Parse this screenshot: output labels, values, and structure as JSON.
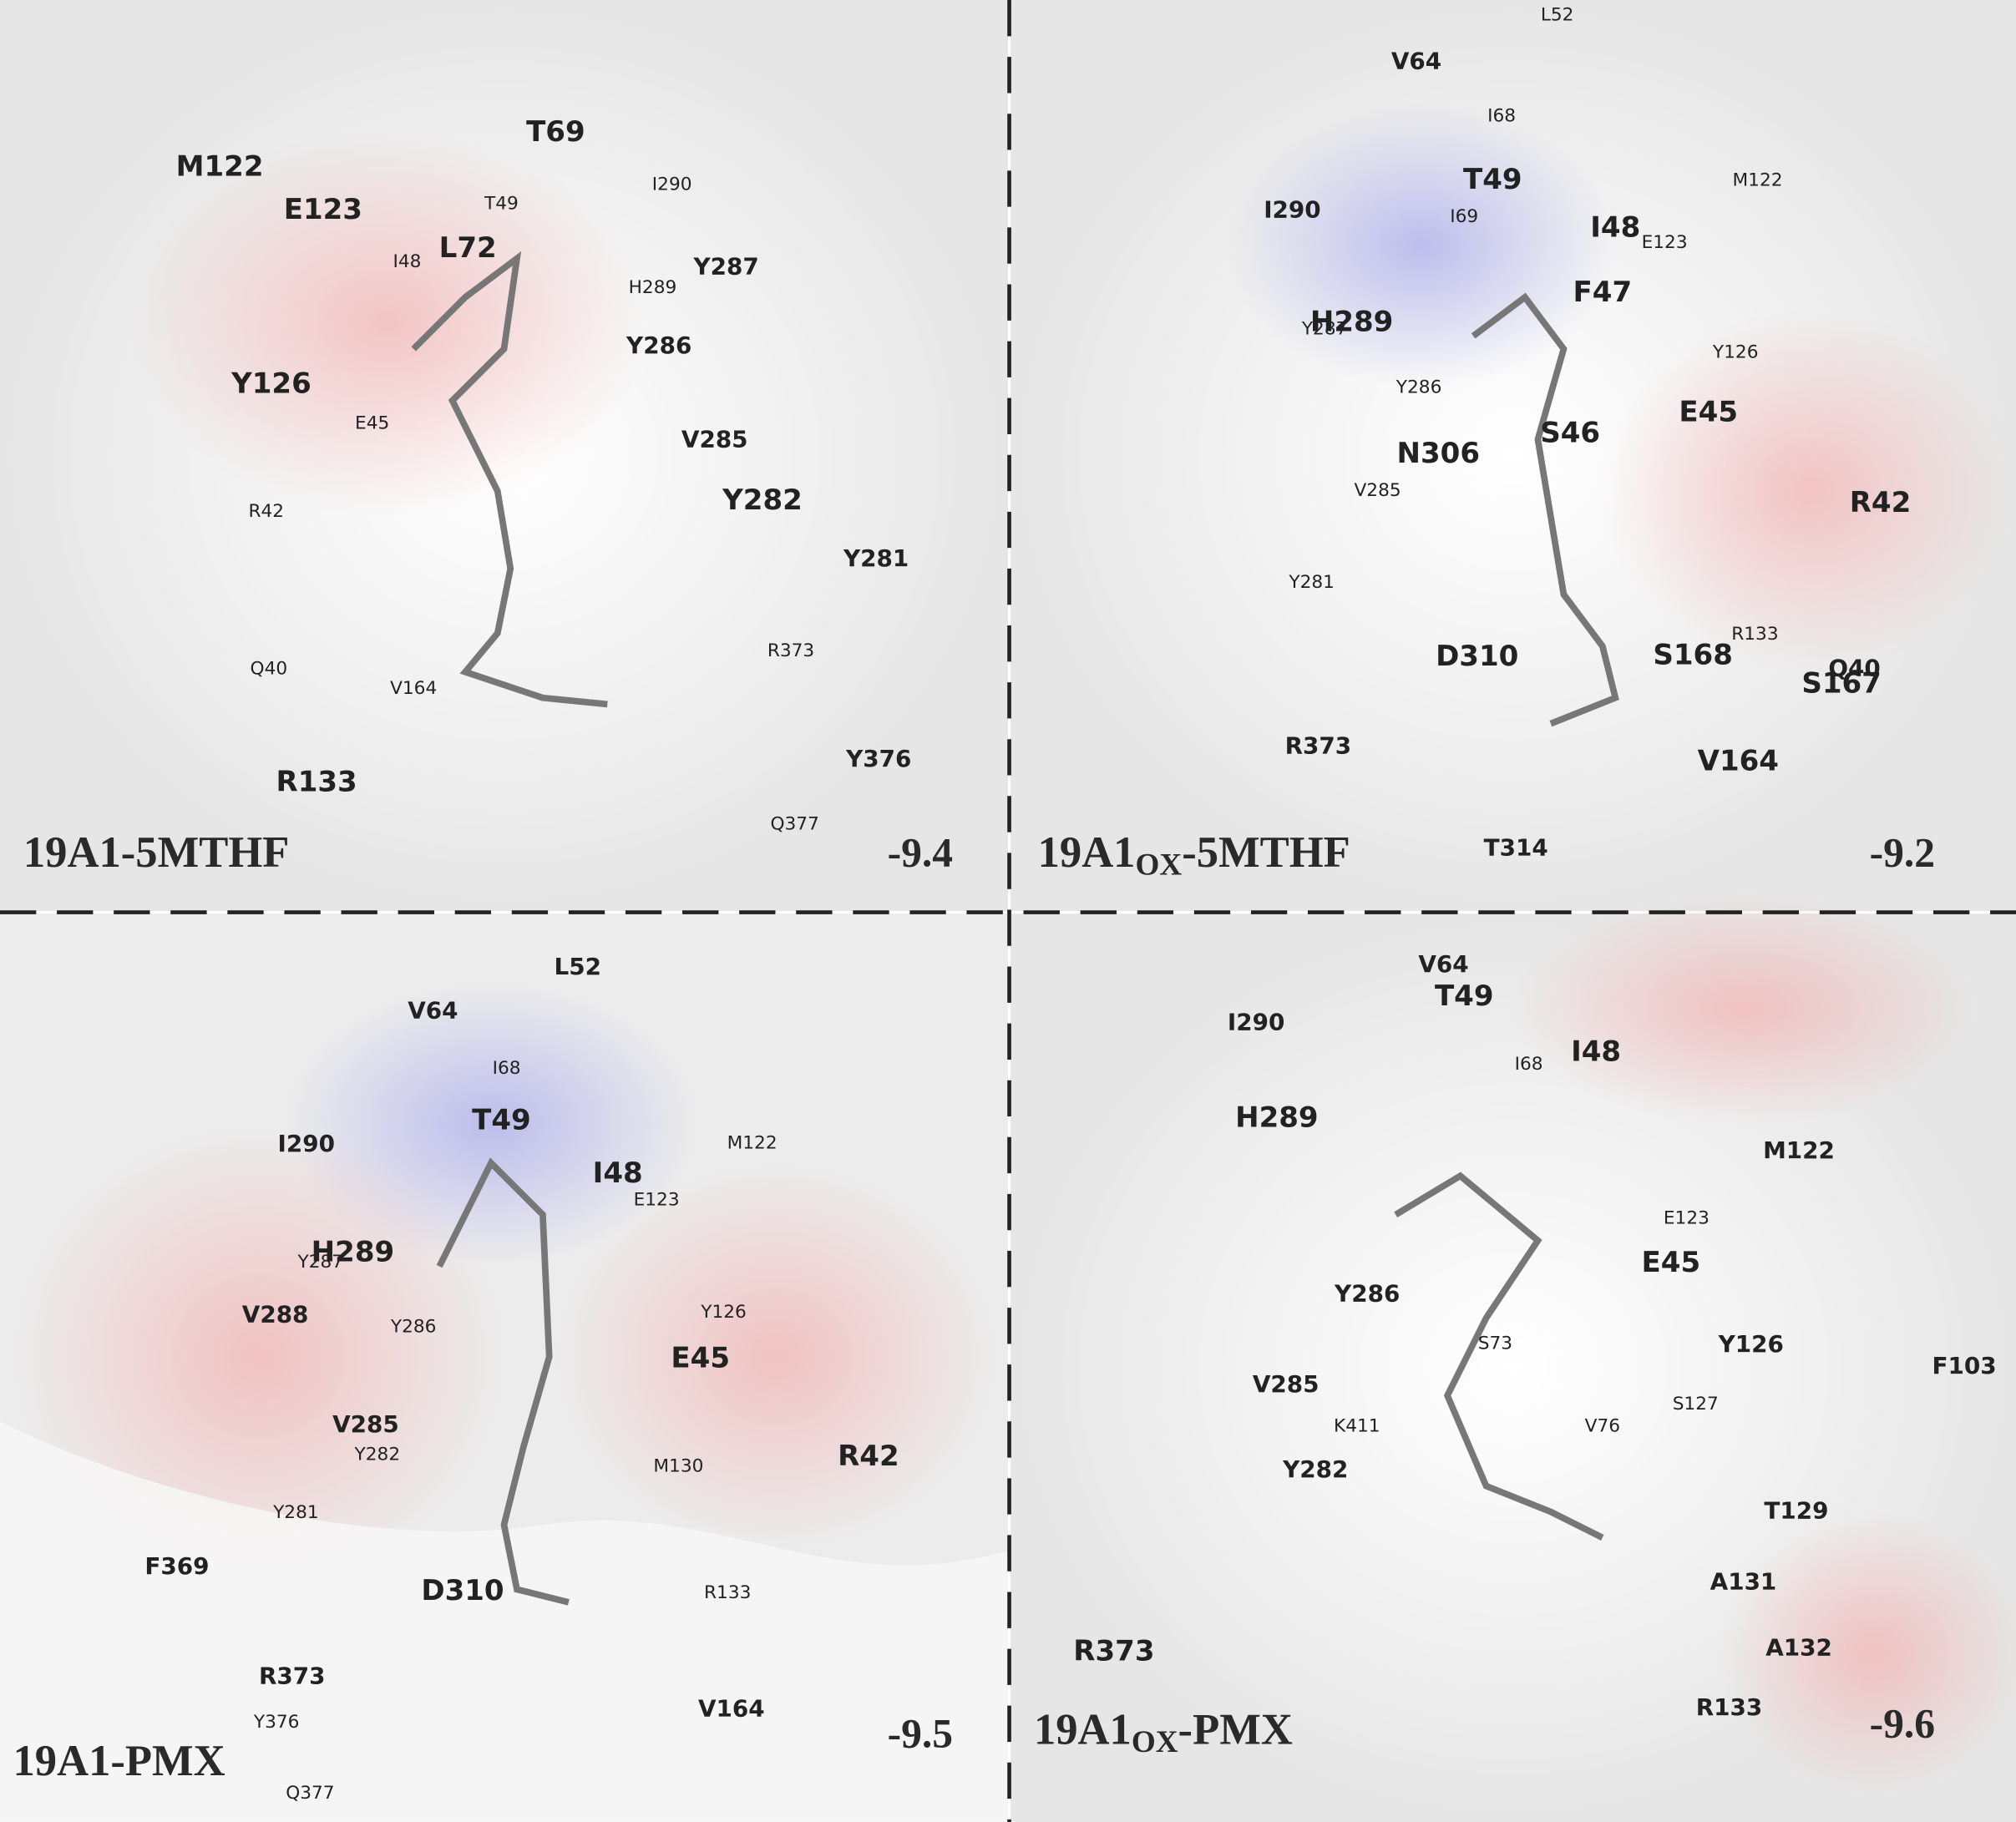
{
  "panels": [
    {
      "title": {
        "main": "19A1-5MTHF"
      },
      "score": -9.4,
      "residues": [
        "M122",
        "E123",
        "T69",
        "T49",
        "I290",
        "L72",
        "I48",
        "H289",
        "Y287",
        "Y286",
        "Y126",
        "E45",
        "V285",
        "R42",
        "Y282",
        "Y281",
        "R373",
        "Q40",
        "V164",
        "R133",
        "Y376",
        "Q377"
      ]
    },
    {
      "title": {
        "main": "19A1",
        "sub": "OX",
        "rest": "-5MTHF"
      },
      "score": -9.2,
      "residues": [
        "L52",
        "V64",
        "I68",
        "T49",
        "M122",
        "I290",
        "I69",
        "I48",
        "E123",
        "F47",
        "H289",
        "Y287",
        "Y126",
        "Y286",
        "S46",
        "E45",
        "N306",
        "V285",
        "R42",
        "Y281",
        "D310",
        "R133",
        "S168",
        "Q40",
        "S167",
        "R373",
        "V164",
        "T314"
      ]
    },
    {
      "title": {
        "main": "19A1-PMX"
      },
      "score": -9.5,
      "residues": [
        "L52",
        "V64",
        "I68",
        "T49",
        "I290",
        "M122",
        "I48",
        "E123",
        "H289",
        "Y287",
        "V288",
        "Y286",
        "Y126",
        "E45",
        "V285",
        "Y282",
        "M130",
        "R42",
        "Y281",
        "F369",
        "D310",
        "R133",
        "R373",
        "V164",
        "Y376",
        "Q377"
      ]
    },
    {
      "title": {
        "main": "19A1",
        "sub": "OX",
        "rest": "-PMX"
      },
      "score": -9.6,
      "residues": [
        "V64",
        "T49",
        "I290",
        "I68",
        "I48",
        "H289",
        "M122",
        "E123",
        "E45",
        "Y286",
        "S73",
        "Y126",
        "F103",
        "V285",
        "K411",
        "S127",
        "V76",
        "Y282",
        "T129",
        "A131",
        "R373",
        "A132",
        "R133"
      ]
    }
  ]
}
